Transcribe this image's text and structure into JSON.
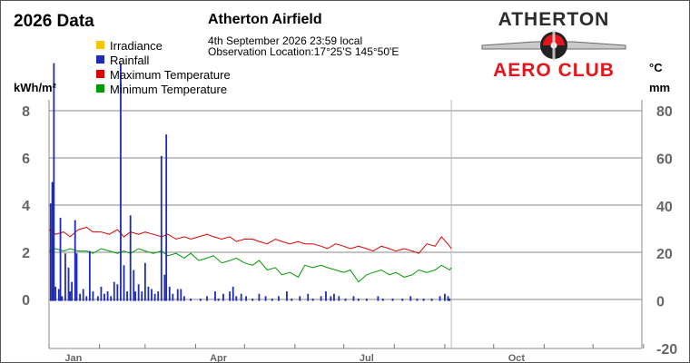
{
  "header": {
    "title": "2026 Data",
    "station": "Atherton Airfield",
    "observation_time": "4th September 2026  23:59 local",
    "observation_location": "Observation Location:17°25'S 145°50'E"
  },
  "logo": {
    "line1": "ATHERTON",
    "line2": "AERO CLUB",
    "colors": {
      "text": "#2b2b2b",
      "accent": "#e4161b",
      "line2": "#e4161b"
    }
  },
  "chart_data": {
    "type": "line",
    "title": "2026 Data",
    "left_axis": {
      "label": "kWh/m²",
      "ticks": [
        "0",
        "2",
        "4",
        "6",
        "8"
      ],
      "range": [
        0,
        8
      ]
    },
    "right_axis": {
      "label_temp": "°C",
      "label_rain": "mm",
      "ticks": [
        "-20",
        "0",
        "20",
        "40",
        "60",
        "80"
      ],
      "range": [
        -20,
        80
      ]
    },
    "x_axis": {
      "ticks": [
        "Jan",
        "Apr",
        "Jul",
        "Oct"
      ],
      "range_days": [
        1,
        365
      ]
    },
    "grid": true,
    "legend": {
      "placement": "top-left",
      "entries": [
        {
          "name": "Irradiance",
          "color": "#f5c400"
        },
        {
          "name": "Rainfall",
          "color": "#1e2bb5"
        },
        {
          "name": "Maximum Temperature",
          "color": "#dd0000"
        },
        {
          "name": "Minimum Temperature",
          "color": "#009900"
        }
      ]
    },
    "series": [
      {
        "name": "Maximum Temperature",
        "axis": "right",
        "color": "#dd0000",
        "points_day_value": [
          [
            1,
            30
          ],
          [
            5,
            28
          ],
          [
            10,
            29
          ],
          [
            14,
            27
          ],
          [
            19,
            30
          ],
          [
            24,
            31
          ],
          [
            28,
            29
          ],
          [
            33,
            29
          ],
          [
            38,
            28
          ],
          [
            43,
            30
          ],
          [
            47,
            27
          ],
          [
            51,
            29
          ],
          [
            56,
            28
          ],
          [
            60,
            29
          ],
          [
            65,
            28
          ],
          [
            70,
            27
          ],
          [
            74,
            28
          ],
          [
            79,
            26
          ],
          [
            84,
            27
          ],
          [
            88,
            26
          ],
          [
            93,
            27
          ],
          [
            98,
            28
          ],
          [
            102,
            27
          ],
          [
            107,
            26
          ],
          [
            112,
            27
          ],
          [
            116,
            25
          ],
          [
            121,
            26
          ],
          [
            126,
            26
          ],
          [
            130,
            25
          ],
          [
            135,
            24
          ],
          [
            140,
            26
          ],
          [
            144,
            25
          ],
          [
            149,
            24
          ],
          [
            154,
            25
          ],
          [
            158,
            24
          ],
          [
            163,
            24
          ],
          [
            168,
            23
          ],
          [
            172,
            22
          ],
          [
            177,
            24
          ],
          [
            182,
            23
          ],
          [
            186,
            22
          ],
          [
            191,
            23
          ],
          [
            196,
            22
          ],
          [
            200,
            21
          ],
          [
            205,
            23
          ],
          [
            210,
            22
          ],
          [
            214,
            21
          ],
          [
            219,
            22
          ],
          [
            224,
            21
          ],
          [
            228,
            20
          ],
          [
            233,
            24
          ],
          [
            238,
            23
          ],
          [
            242,
            27
          ],
          [
            247,
            23
          ],
          [
            248,
            22
          ]
        ]
      },
      {
        "name": "Minimum Temperature",
        "axis": "right",
        "color": "#009900",
        "points_day_value": [
          [
            1,
            21
          ],
          [
            5,
            22
          ],
          [
            10,
            21
          ],
          [
            14,
            22
          ],
          [
            19,
            21
          ],
          [
            24,
            21
          ],
          [
            28,
            20
          ],
          [
            33,
            22
          ],
          [
            38,
            21
          ],
          [
            43,
            20
          ],
          [
            47,
            21
          ],
          [
            51,
            20
          ],
          [
            56,
            22
          ],
          [
            60,
            21
          ],
          [
            65,
            20
          ],
          [
            70,
            21
          ],
          [
            74,
            19
          ],
          [
            79,
            20
          ],
          [
            84,
            18
          ],
          [
            88,
            20
          ],
          [
            93,
            17
          ],
          [
            98,
            18
          ],
          [
            102,
            19
          ],
          [
            107,
            16
          ],
          [
            112,
            17
          ],
          [
            116,
            18
          ],
          [
            121,
            16
          ],
          [
            126,
            15
          ],
          [
            130,
            17
          ],
          [
            135,
            13
          ],
          [
            140,
            14
          ],
          [
            144,
            11
          ],
          [
            149,
            12
          ],
          [
            154,
            10
          ],
          [
            158,
            15
          ],
          [
            163,
            14
          ],
          [
            168,
            15
          ],
          [
            172,
            14
          ],
          [
            177,
            13
          ],
          [
            182,
            12
          ],
          [
            186,
            13
          ],
          [
            191,
            8
          ],
          [
            196,
            11
          ],
          [
            200,
            12
          ],
          [
            205,
            13
          ],
          [
            210,
            11
          ],
          [
            214,
            12
          ],
          [
            219,
            10
          ],
          [
            224,
            11
          ],
          [
            228,
            13
          ],
          [
            233,
            12
          ],
          [
            238,
            13
          ],
          [
            242,
            15
          ],
          [
            247,
            13
          ],
          [
            248,
            14
          ]
        ]
      },
      {
        "name": "Rainfall",
        "axis": "right",
        "color": "#1e2bb5",
        "type": "bar",
        "points_day_value": [
          [
            2,
            41
          ],
          [
            3,
            50
          ],
          [
            4,
            100
          ],
          [
            5,
            6
          ],
          [
            7,
            5
          ],
          [
            8,
            35
          ],
          [
            9,
            2
          ],
          [
            11,
            20
          ],
          [
            13,
            14
          ],
          [
            14,
            4
          ],
          [
            15,
            8
          ],
          [
            17,
            34
          ],
          [
            18,
            20
          ],
          [
            20,
            3
          ],
          [
            22,
            5
          ],
          [
            24,
            2
          ],
          [
            26,
            21
          ],
          [
            28,
            4
          ],
          [
            31,
            2
          ],
          [
            33,
            6
          ],
          [
            35,
            3
          ],
          [
            37,
            4
          ],
          [
            39,
            2
          ],
          [
            41,
            8
          ],
          [
            43,
            7
          ],
          [
            45,
            100
          ],
          [
            47,
            15
          ],
          [
            49,
            4
          ],
          [
            51,
            36
          ],
          [
            53,
            13
          ],
          [
            54,
            4
          ],
          [
            56,
            7
          ],
          [
            58,
            4
          ],
          [
            60,
            16
          ],
          [
            62,
            6
          ],
          [
            64,
            5
          ],
          [
            66,
            3
          ],
          [
            68,
            4
          ],
          [
            70,
            61
          ],
          [
            72,
            11
          ],
          [
            73,
            70
          ],
          [
            75,
            6
          ],
          [
            77,
            3
          ],
          [
            80,
            5
          ],
          [
            82,
            5
          ],
          [
            84,
            2
          ],
          [
            88,
            1
          ],
          [
            94,
            1
          ],
          [
            98,
            2
          ],
          [
            103,
            4
          ],
          [
            105,
            1
          ],
          [
            108,
            3
          ],
          [
            112,
            4
          ],
          [
            114,
            6
          ],
          [
            116,
            2
          ],
          [
            119,
            3
          ],
          [
            122,
            2
          ],
          [
            126,
            1
          ],
          [
            130,
            3
          ],
          [
            134,
            2
          ],
          [
            138,
            1
          ],
          [
            142,
            2
          ],
          [
            147,
            4
          ],
          [
            150,
            1
          ],
          [
            155,
            2
          ],
          [
            160,
            3
          ],
          [
            163,
            1
          ],
          [
            168,
            2
          ],
          [
            171,
            4
          ],
          [
            174,
            2
          ],
          [
            176,
            3
          ],
          [
            179,
            2
          ],
          [
            183,
            1
          ],
          [
            188,
            2
          ],
          [
            191,
            1
          ],
          [
            196,
            1
          ],
          [
            203,
            2
          ],
          [
            206,
            1
          ],
          [
            212,
            1
          ],
          [
            218,
            1
          ],
          [
            223,
            2
          ],
          [
            227,
            1
          ],
          [
            231,
            1
          ],
          [
            236,
            1
          ],
          [
            241,
            2
          ],
          [
            244,
            3
          ],
          [
            246,
            2
          ],
          [
            247,
            1
          ]
        ]
      }
    ]
  }
}
